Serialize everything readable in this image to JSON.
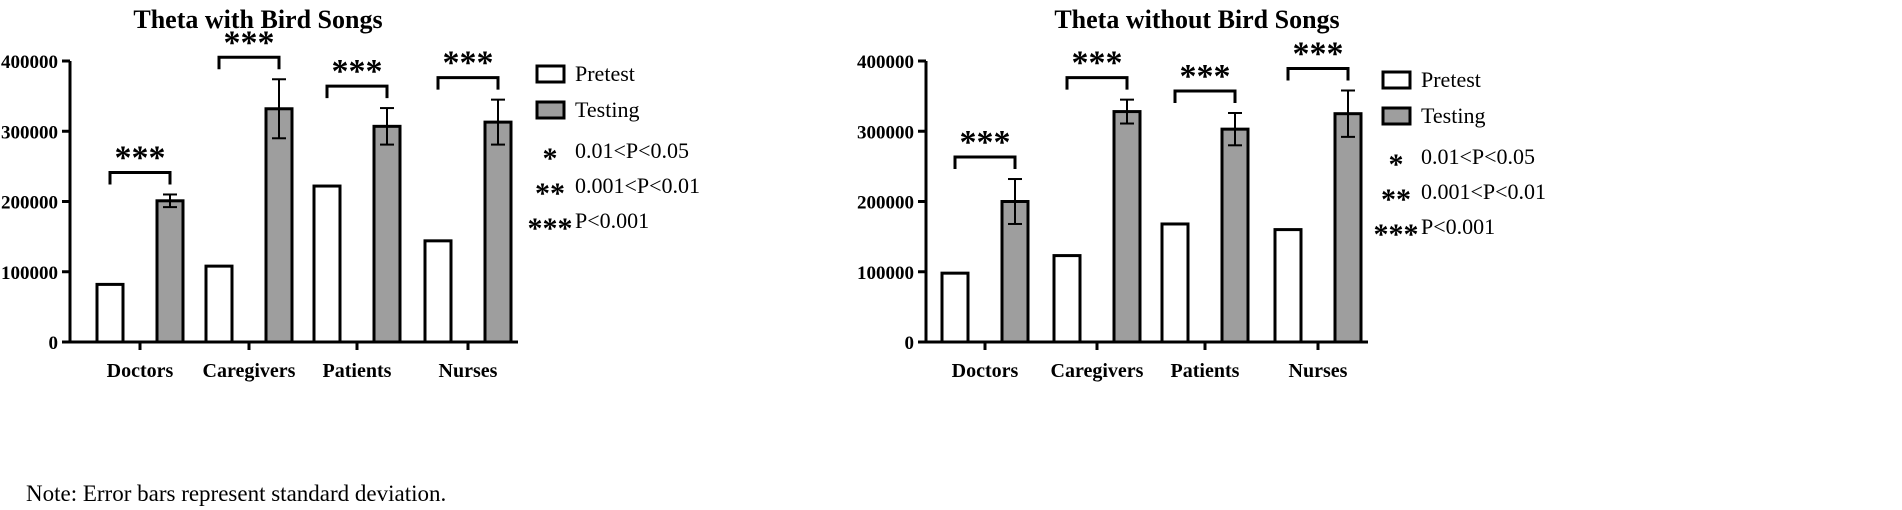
{
  "note": "Note: Error bars represent standard deviation.",
  "legend": {
    "items": [
      {
        "label": "Pretest",
        "fill": "#ffffff"
      },
      {
        "label": "Testing",
        "fill": "#9e9e9e"
      }
    ],
    "significance": [
      {
        "stars": "*",
        "label": "0.01<P<0.05"
      },
      {
        "stars": "**",
        "label": "0.001<P<0.01"
      },
      {
        "stars": "***",
        "label": "P<0.001"
      }
    ]
  },
  "colors": {
    "pretest": "#ffffff",
    "testing": "#9e9e9e",
    "stroke": "#000000"
  },
  "chart_data": [
    {
      "type": "bar",
      "title": "Theta with Bird Songs",
      "categories": [
        "Doctors",
        "Caregivers",
        "Patients",
        "Nurses"
      ],
      "ylim": [
        0,
        400000
      ],
      "yticks": [
        0,
        100000,
        200000,
        300000,
        400000
      ],
      "ytick_labels": [
        "0",
        "100000",
        "200000",
        "300000",
        "400000"
      ],
      "series": [
        {
          "name": "Pretest",
          "values": [
            82000,
            108000,
            222000,
            144000
          ]
        },
        {
          "name": "Testing",
          "values": [
            201000,
            332000,
            307000,
            313000
          ],
          "error": [
            9000,
            42000,
            26000,
            32000
          ]
        }
      ],
      "significance": [
        "***",
        "***",
        "***",
        "***"
      ],
      "grid": false
    },
    {
      "type": "bar",
      "title": "Theta without Bird Songs",
      "categories": [
        "Doctors",
        "Caregivers",
        "Patients",
        "Nurses"
      ],
      "ylim": [
        0,
        400000
      ],
      "yticks": [
        0,
        100000,
        200000,
        300000,
        400000
      ],
      "ytick_labels": [
        "0",
        "100000",
        "200000",
        "300000",
        "400000"
      ],
      "series": [
        {
          "name": "Pretest",
          "values": [
            98000,
            123000,
            168000,
            160000
          ]
        },
        {
          "name": "Testing",
          "values": [
            200000,
            328000,
            303000,
            325000
          ],
          "error": [
            32000,
            17000,
            23000,
            33000
          ]
        }
      ],
      "significance": [
        "***",
        "***",
        "***",
        "***"
      ],
      "grid": false
    }
  ]
}
